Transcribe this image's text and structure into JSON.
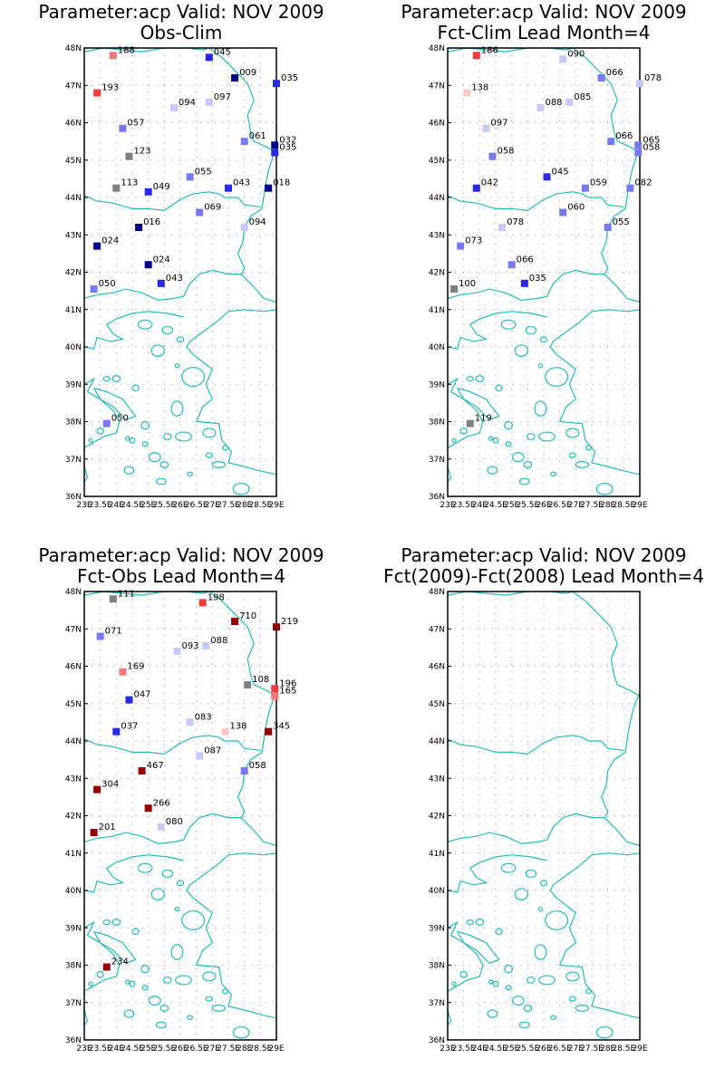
{
  "axes": {
    "lat_ticks": [
      "48N",
      "47N",
      "46N",
      "45N",
      "44N",
      "43N",
      "42N",
      "41N",
      "40N",
      "39N",
      "38N",
      "37N",
      "36N"
    ],
    "lon_ticks": [
      "23E",
      "23.5E",
      "24E",
      "24.5E",
      "25E",
      "25.5E",
      "26E",
      "26.5E",
      "27E",
      "27.5E",
      "28E",
      "28.5E",
      "29E"
    ],
    "lat_range": [
      36,
      48
    ],
    "lon_range": [
      23,
      29
    ],
    "grid": true
  },
  "colors": {
    "coastline": "#22bcbc",
    "dark_blue": "#00008b",
    "blue": "#2828e6",
    "medium_blue": "#7878f0",
    "light_blue": "#c8c8fa",
    "gray": "#808080",
    "light_red": "#ffc8c8",
    "salmon": "#f07878",
    "red": "#f03c3c",
    "dark_red": "#960000"
  },
  "panels": [
    {
      "title1": "Parameter:acp Valid: NOV 2009",
      "title2": "Obs-Clim",
      "stations": [
        {
          "lon": 23.9,
          "lat": 47.8,
          "label": "188",
          "color": "salmon"
        },
        {
          "lon": 26.9,
          "lat": 47.75,
          "label": "045",
          "color": "blue"
        },
        {
          "lon": 23.4,
          "lat": 46.8,
          "label": "193",
          "color": "red"
        },
        {
          "lon": 27.7,
          "lat": 47.2,
          "label": "009",
          "color": "dark_blue"
        },
        {
          "lon": 29.0,
          "lat": 47.05,
          "label": "035",
          "color": "blue"
        },
        {
          "lon": 26.9,
          "lat": 46.55,
          "label": "097",
          "color": "light_blue"
        },
        {
          "lon": 25.8,
          "lat": 46.4,
          "label": "094",
          "color": "light_blue"
        },
        {
          "lon": 24.2,
          "lat": 45.85,
          "label": "057",
          "color": "medium_blue"
        },
        {
          "lon": 28.0,
          "lat": 45.5,
          "label": "061",
          "color": "medium_blue"
        },
        {
          "lon": 28.95,
          "lat": 45.4,
          "label": "032",
          "color": "dark_blue"
        },
        {
          "lon": 28.95,
          "lat": 45.2,
          "label": "035",
          "color": "blue"
        },
        {
          "lon": 24.4,
          "lat": 45.1,
          "label": "123",
          "color": "gray"
        },
        {
          "lon": 24.0,
          "lat": 44.25,
          "label": "113",
          "color": "gray"
        },
        {
          "lon": 26.3,
          "lat": 44.55,
          "label": "055",
          "color": "medium_blue"
        },
        {
          "lon": 25.0,
          "lat": 44.15,
          "label": "049",
          "color": "blue"
        },
        {
          "lon": 27.5,
          "lat": 44.25,
          "label": "043",
          "color": "blue"
        },
        {
          "lon": 28.75,
          "lat": 44.25,
          "label": "018",
          "color": "dark_blue"
        },
        {
          "lon": 26.6,
          "lat": 43.6,
          "label": "069",
          "color": "medium_blue"
        },
        {
          "lon": 28.0,
          "lat": 43.2,
          "label": "094",
          "color": "light_blue"
        },
        {
          "lon": 24.7,
          "lat": 43.2,
          "label": "016",
          "color": "dark_blue"
        },
        {
          "lon": 23.4,
          "lat": 42.7,
          "label": "024",
          "color": "dark_blue"
        },
        {
          "lon": 25.0,
          "lat": 42.2,
          "label": "024",
          "color": "dark_blue"
        },
        {
          "lon": 25.4,
          "lat": 41.7,
          "label": "043",
          "color": "blue"
        },
        {
          "lon": 23.3,
          "lat": 41.55,
          "label": "050",
          "color": "medium_blue"
        },
        {
          "lon": 23.7,
          "lat": 37.95,
          "label": "050",
          "color": "medium_blue"
        }
      ]
    },
    {
      "title1": "Parameter:acp Valid: NOV 2009",
      "title2": "Fct-Clim Lead Month=4",
      "stations": [
        {
          "lon": 23.9,
          "lat": 47.8,
          "label": "186",
          "color": "red"
        },
        {
          "lon": 26.6,
          "lat": 47.7,
          "label": "090",
          "color": "light_blue"
        },
        {
          "lon": 27.8,
          "lat": 47.2,
          "label": "066",
          "color": "medium_blue"
        },
        {
          "lon": 29.0,
          "lat": 47.05,
          "label": "078",
          "color": "light_blue"
        },
        {
          "lon": 23.6,
          "lat": 46.8,
          "label": "138",
          "color": "light_red"
        },
        {
          "lon": 26.8,
          "lat": 46.55,
          "label": "085",
          "color": "light_blue"
        },
        {
          "lon": 25.9,
          "lat": 46.4,
          "label": "088",
          "color": "light_blue"
        },
        {
          "lon": 24.2,
          "lat": 45.85,
          "label": "097",
          "color": "light_blue"
        },
        {
          "lon": 28.1,
          "lat": 45.5,
          "label": "066",
          "color": "medium_blue"
        },
        {
          "lon": 28.95,
          "lat": 45.4,
          "label": "065",
          "color": "medium_blue"
        },
        {
          "lon": 28.95,
          "lat": 45.2,
          "label": "058",
          "color": "medium_blue"
        },
        {
          "lon": 24.4,
          "lat": 45.1,
          "label": "058",
          "color": "medium_blue"
        },
        {
          "lon": 26.1,
          "lat": 44.55,
          "label": "045",
          "color": "blue"
        },
        {
          "lon": 23.9,
          "lat": 44.25,
          "label": "042",
          "color": "blue"
        },
        {
          "lon": 27.3,
          "lat": 44.25,
          "label": "059",
          "color": "medium_blue"
        },
        {
          "lon": 28.7,
          "lat": 44.25,
          "label": "082",
          "color": "medium_blue"
        },
        {
          "lon": 26.6,
          "lat": 43.6,
          "label": "060",
          "color": "medium_blue"
        },
        {
          "lon": 24.7,
          "lat": 43.2,
          "label": "078",
          "color": "light_blue"
        },
        {
          "lon": 28.0,
          "lat": 43.2,
          "label": "055",
          "color": "medium_blue"
        },
        {
          "lon": 23.4,
          "lat": 42.7,
          "label": "073",
          "color": "medium_blue"
        },
        {
          "lon": 25.0,
          "lat": 42.2,
          "label": "066",
          "color": "medium_blue"
        },
        {
          "lon": 25.4,
          "lat": 41.7,
          "label": "035",
          "color": "blue"
        },
        {
          "lon": 23.2,
          "lat": 41.55,
          "label": "100",
          "color": "gray"
        },
        {
          "lon": 23.7,
          "lat": 37.95,
          "label": "119",
          "color": "gray"
        }
      ]
    },
    {
      "title1": "Parameter:acp Valid: NOV 2009",
      "title2": "Fct-Obs Lead Month=4",
      "stations": [
        {
          "lon": 23.9,
          "lat": 47.8,
          "label": "111",
          "color": "gray"
        },
        {
          "lon": 26.7,
          "lat": 47.7,
          "label": "198",
          "color": "red"
        },
        {
          "lon": 27.7,
          "lat": 47.2,
          "label": "710",
          "color": "dark_red"
        },
        {
          "lon": 29.0,
          "lat": 47.05,
          "label": "219",
          "color": "dark_red"
        },
        {
          "lon": 23.5,
          "lat": 46.8,
          "label": "071",
          "color": "medium_blue"
        },
        {
          "lon": 26.8,
          "lat": 46.55,
          "label": "088",
          "color": "light_blue"
        },
        {
          "lon": 25.9,
          "lat": 46.4,
          "label": "093",
          "color": "light_blue"
        },
        {
          "lon": 24.2,
          "lat": 45.85,
          "label": "169",
          "color": "salmon"
        },
        {
          "lon": 28.1,
          "lat": 45.5,
          "label": "108",
          "color": "gray"
        },
        {
          "lon": 28.95,
          "lat": 45.4,
          "label": "196",
          "color": "red"
        },
        {
          "lon": 28.95,
          "lat": 45.2,
          "label": "165",
          "color": "salmon"
        },
        {
          "lon": 24.4,
          "lat": 45.1,
          "label": "047",
          "color": "blue"
        },
        {
          "lon": 26.3,
          "lat": 44.5,
          "label": "083",
          "color": "light_blue"
        },
        {
          "lon": 24.0,
          "lat": 44.25,
          "label": "037",
          "color": "blue"
        },
        {
          "lon": 27.4,
          "lat": 44.25,
          "label": "138",
          "color": "light_red"
        },
        {
          "lon": 28.75,
          "lat": 44.25,
          "label": "345",
          "color": "dark_red"
        },
        {
          "lon": 26.6,
          "lat": 43.6,
          "label": "087",
          "color": "light_blue"
        },
        {
          "lon": 28.0,
          "lat": 43.2,
          "label": "058",
          "color": "medium_blue"
        },
        {
          "lon": 24.8,
          "lat": 43.2,
          "label": "467",
          "color": "dark_red"
        },
        {
          "lon": 23.4,
          "lat": 42.7,
          "label": "304",
          "color": "dark_red"
        },
        {
          "lon": 25.0,
          "lat": 42.2,
          "label": "266",
          "color": "dark_red"
        },
        {
          "lon": 25.4,
          "lat": 41.7,
          "label": "080",
          "color": "light_blue"
        },
        {
          "lon": 23.3,
          "lat": 41.55,
          "label": "201",
          "color": "dark_red"
        },
        {
          "lon": 23.7,
          "lat": 37.95,
          "label": "234",
          "color": "dark_red"
        }
      ]
    },
    {
      "title1": "Parameter:acp Valid: NOV 2009",
      "title2": "Fct(2009)-Fct(2008) Lead Month=4",
      "stations": []
    }
  ]
}
